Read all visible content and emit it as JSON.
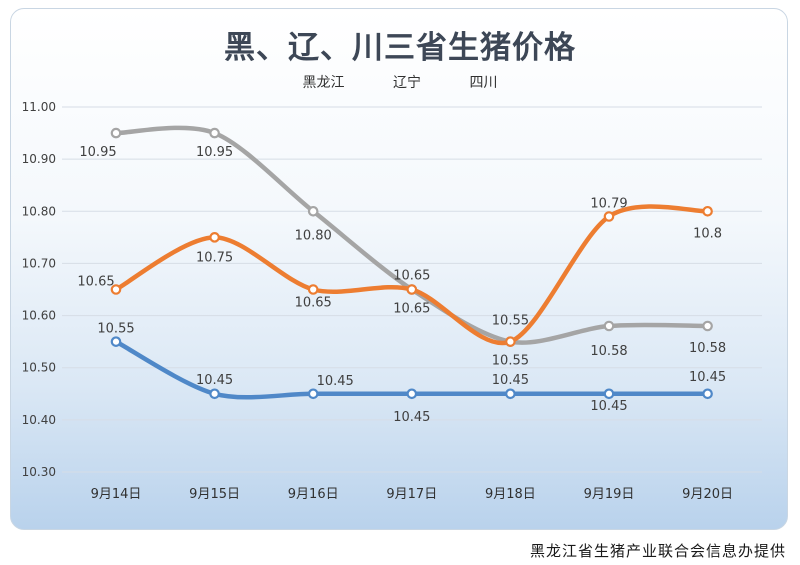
{
  "chart_data": {
    "type": "line",
    "title": "黑、辽、川三省生猪价格",
    "categories": [
      "9月14日",
      "9月15日",
      "9月16日",
      "9月17日",
      "9月18日",
      "9月19日",
      "9月20日"
    ],
    "ylim": [
      10.3,
      11.0
    ],
    "yticks": [
      "10.30",
      "10.40",
      "10.50",
      "10.60",
      "10.70",
      "10.80",
      "10.90",
      "11.00"
    ],
    "ytick_values": [
      10.3,
      10.4,
      10.5,
      10.6,
      10.7,
      10.8,
      10.9,
      11.0
    ],
    "grid": true,
    "legend_position": "top",
    "series": [
      {
        "name": "黑龙江",
        "color": "#4f88c8",
        "values": [
          10.55,
          10.45,
          10.45,
          10.45,
          10.45,
          10.45,
          10.45
        ],
        "labels": [
          "10.55",
          "10.45",
          "10.45",
          "10.45",
          "10.45",
          "10.45",
          "10.45"
        ]
      },
      {
        "name": "辽宁",
        "color": "#ed7d31",
        "values": [
          10.65,
          10.75,
          10.65,
          10.65,
          10.55,
          10.79,
          10.8
        ],
        "labels": [
          "10.65",
          "10.75",
          "10.65",
          "10.65",
          "10.55",
          "10.79",
          "10.8"
        ]
      },
      {
        "name": "四川",
        "color": "#a5a5a5",
        "values": [
          10.95,
          10.95,
          10.8,
          10.65,
          10.55,
          10.58,
          10.58
        ],
        "labels": [
          "10.95",
          "10.95",
          "10.80",
          "10.65",
          "10.55",
          "10.58",
          "10.58"
        ]
      }
    ]
  },
  "footer": {
    "source": "黑龙江省生猪产业联合会信息办提供"
  }
}
